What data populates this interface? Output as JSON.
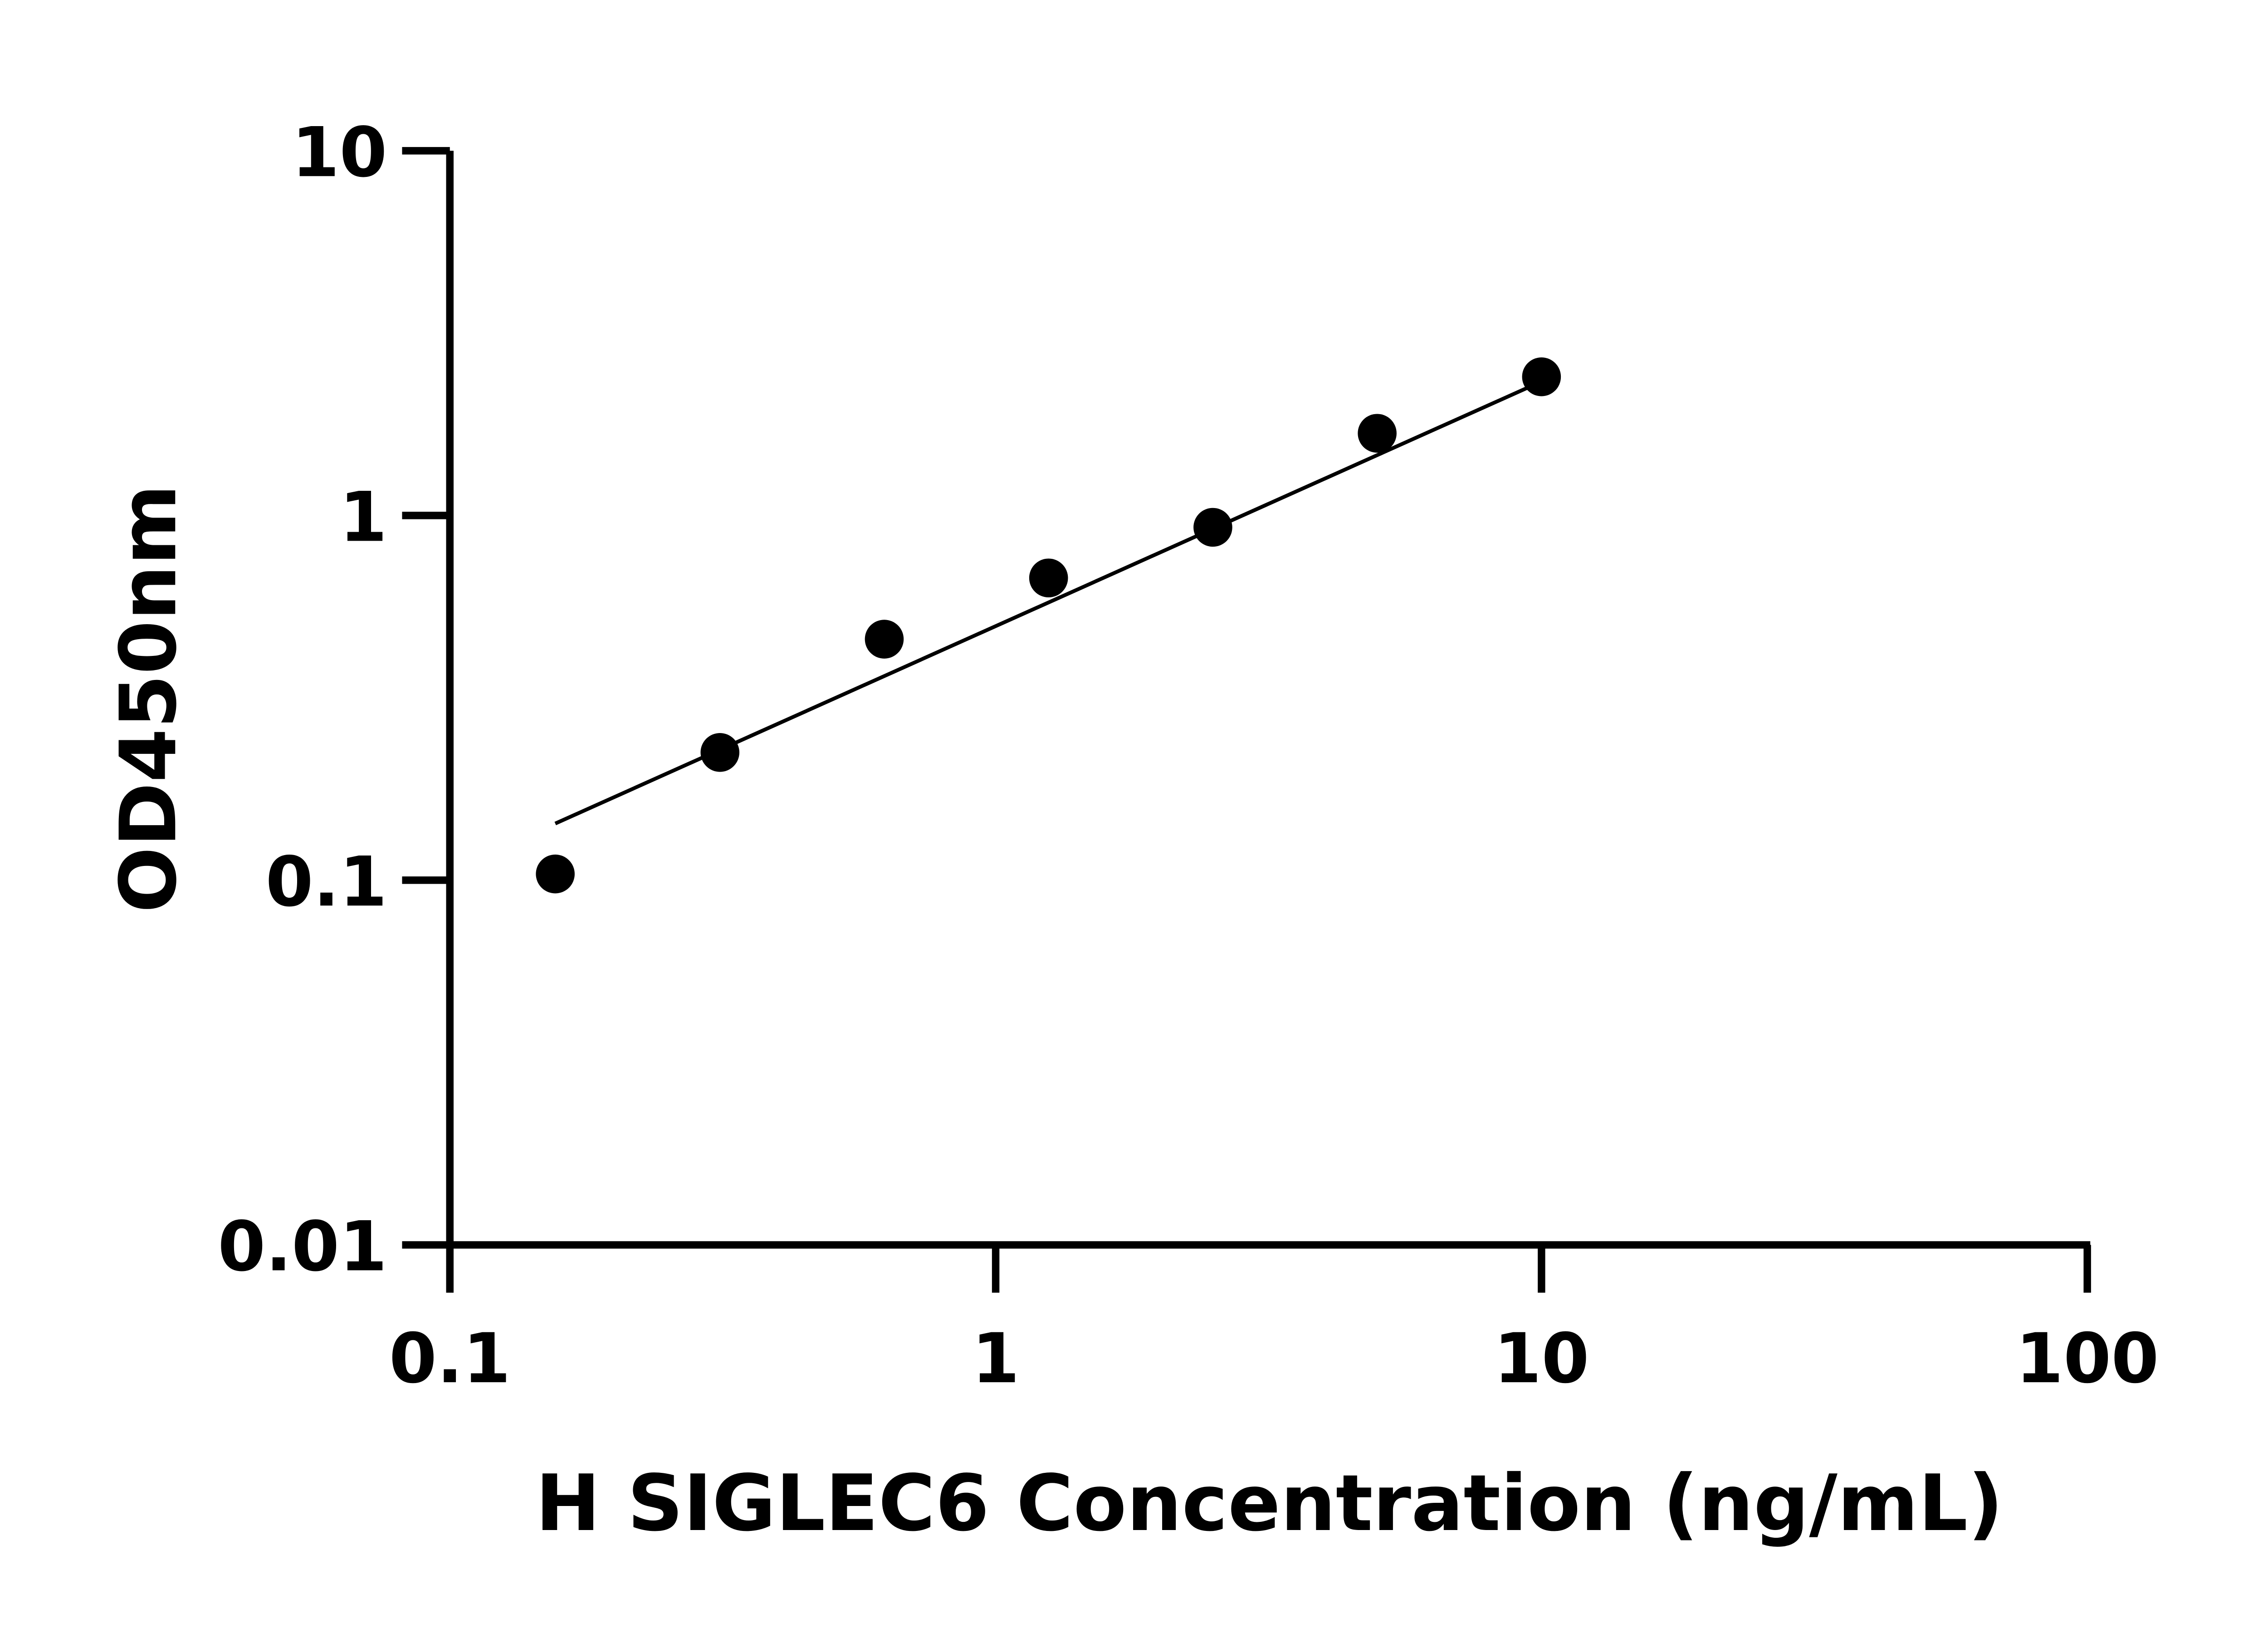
{
  "chart_data": {
    "type": "scatter",
    "title": "",
    "xlabel": "H SIGLEC6 Concentration (ng/mL)",
    "ylabel": "OD450nm",
    "x_scale": "log",
    "y_scale": "log",
    "xlim": [
      0.1,
      100
    ],
    "ylim": [
      0.01,
      10
    ],
    "x_ticks": [
      "0.1",
      "1",
      "10",
      "100"
    ],
    "y_ticks": [
      "0.01",
      "0.1",
      "1",
      "10"
    ],
    "grid": false,
    "series": [
      {
        "x": [
          0.156,
          0.3125,
          0.625,
          1.25,
          2.5,
          5,
          10
        ],
        "y": [
          0.104,
          0.224,
          0.458,
          0.674,
          0.928,
          1.68,
          2.4
        ]
      }
    ],
    "fit_line": {
      "x": [
        0.156,
        10
      ],
      "y": [
        0.143,
        2.33
      ]
    },
    "colors": {
      "marker": "#000000",
      "line": "#000000"
    }
  }
}
